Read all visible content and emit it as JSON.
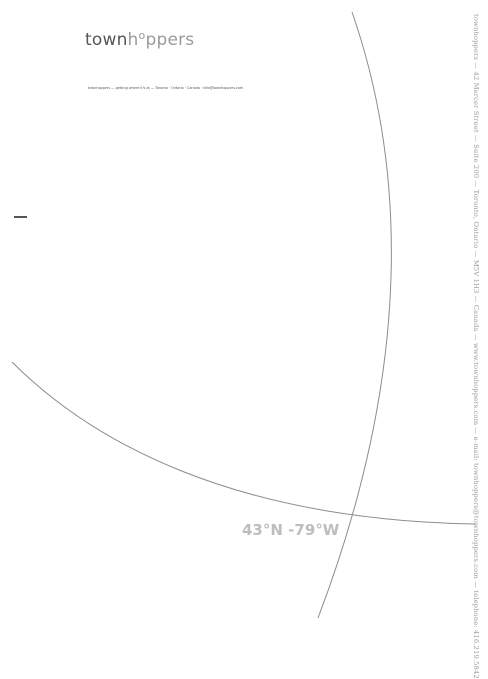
{
  "brand": {
    "part1": "town",
    "part2": "h",
    "part3": "o",
    "part4": "ppers"
  },
  "tagline": "townhoppers — getting where it's at — Toronto · Ontario · Canada · info@townhoppers.com",
  "coordinates": "43°N -79°W",
  "side_text": "townhoppers — 42 Mercer Street — Suite 200 — Toronto, Ontario — M5V 1H3 — Canada — www.townhoppers.com — e-mail: townhoppers@townhoppers.com — telephone: 416.219.5842"
}
